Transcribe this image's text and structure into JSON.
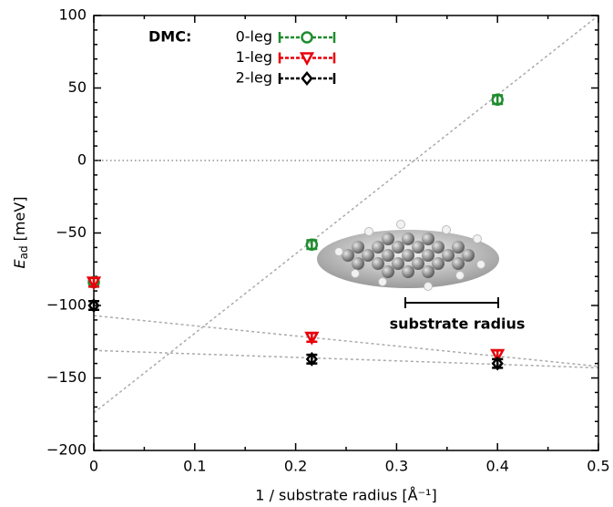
{
  "chart_data": {
    "type": "errorbar-scatter",
    "xlabel": "1 / substrate radius [Å⁻¹]",
    "ylabel": "E",
    "ylabel_sub": "ad",
    "ylabel_unit": " [meV]",
    "xlim": [
      0,
      0.5
    ],
    "ylim": [
      -200,
      100
    ],
    "xticks": [
      0,
      0.1,
      0.2,
      0.3,
      0.4,
      0.5
    ],
    "yticks": [
      {
        "value": -200,
        "label": "−200"
      },
      {
        "value": -150,
        "label": "−150"
      },
      {
        "value": -100,
        "label": "−100"
      },
      {
        "value": -50,
        "label": "−50"
      },
      0,
      50,
      100
    ],
    "xminorticks": [
      0.05,
      0.15,
      0.25,
      0.35,
      0.45
    ],
    "yminorticks": [
      -190,
      -180,
      -170,
      -160,
      -140,
      -130,
      -120,
      -110,
      -90,
      -80,
      -70,
      -60,
      -40,
      -30,
      -20,
      -10,
      10,
      20,
      30,
      40,
      60,
      70,
      80,
      90
    ],
    "legend_title": "DMC:",
    "legend_position": "upper left",
    "reference_line": 0,
    "x": [
      0,
      0.216,
      0.4
    ],
    "series": [
      {
        "name": "0-leg",
        "color": "#1e8c2e",
        "marker": "circle",
        "values": [
          -84,
          -58,
          42
        ],
        "errors": [
          3,
          3,
          3
        ]
      },
      {
        "name": "1-leg",
        "color": "#e8000b",
        "marker": "triangle",
        "values": [
          -84,
          -122,
          -134
        ],
        "errors": [
          3,
          3,
          3
        ]
      },
      {
        "name": "2-leg",
        "color": "#000000",
        "marker": "diamond",
        "values": [
          -100,
          -137,
          -140
        ],
        "errors": [
          3,
          3,
          3
        ]
      }
    ],
    "fit_lines": [
      {
        "x": [
          0,
          0.5
        ],
        "y": [
          -174,
          100
        ]
      },
      {
        "x": [
          0,
          0.5
        ],
        "y": [
          -107,
          -142
        ]
      },
      {
        "x": [
          0,
          0.5
        ],
        "y": [
          -131,
          -143
        ]
      }
    ],
    "annotation": "substrate radius"
  }
}
